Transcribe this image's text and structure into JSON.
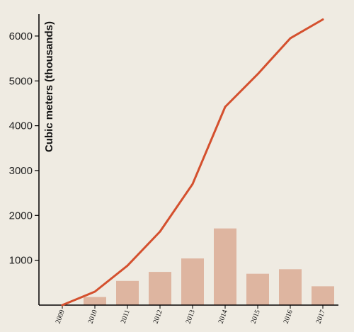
{
  "chart_data": {
    "type": "bar+line",
    "title": "",
    "xlabel": "",
    "ylabel": "Cubic meters (thousands)",
    "ylim": [
      0,
      6400
    ],
    "y_ticks": [
      "1000",
      "2000",
      "3000",
      "4000",
      "5000",
      "6000"
    ],
    "categories": [
      "2009",
      "2010",
      "2011",
      "2012",
      "2013",
      "2014",
      "2015",
      "2016",
      "2017"
    ],
    "series": [
      {
        "type": "bar",
        "values": [
          0,
          180,
          540,
          740,
          1040,
          1710,
          700,
          800,
          420
        ]
      },
      {
        "type": "line",
        "values": [
          0,
          300,
          880,
          1640,
          2700,
          4420,
          5150,
          5950,
          6370
        ]
      }
    ],
    "colors": {
      "bar": "#deb5a0",
      "line": "#d4502e",
      "axis": "#000000",
      "background": "#efebe2"
    },
    "grid": false,
    "legend": "none"
  }
}
